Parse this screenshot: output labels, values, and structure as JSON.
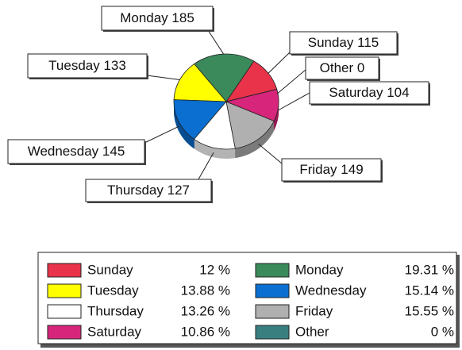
{
  "chart_data": {
    "type": "pie",
    "categories": [
      "Sunday",
      "Monday",
      "Tuesday",
      "Wednesday",
      "Thursday",
      "Friday",
      "Saturday",
      "Other"
    ],
    "values": [
      115,
      185,
      133,
      145,
      127,
      149,
      104,
      0
    ],
    "colors": [
      "#e8334a",
      "#3b8a5c",
      "#ffff00",
      "#0a6fd0",
      "#ffffff",
      "#b0b0b0",
      "#d6257a",
      "#3a7f80"
    ],
    "percent_labels": [
      "12 %",
      "19.31 %",
      "13.88 %",
      "15.14 %",
      "13.26 %",
      "15.55 %",
      "10.86 %",
      "0 %"
    ],
    "legend": true
  }
}
